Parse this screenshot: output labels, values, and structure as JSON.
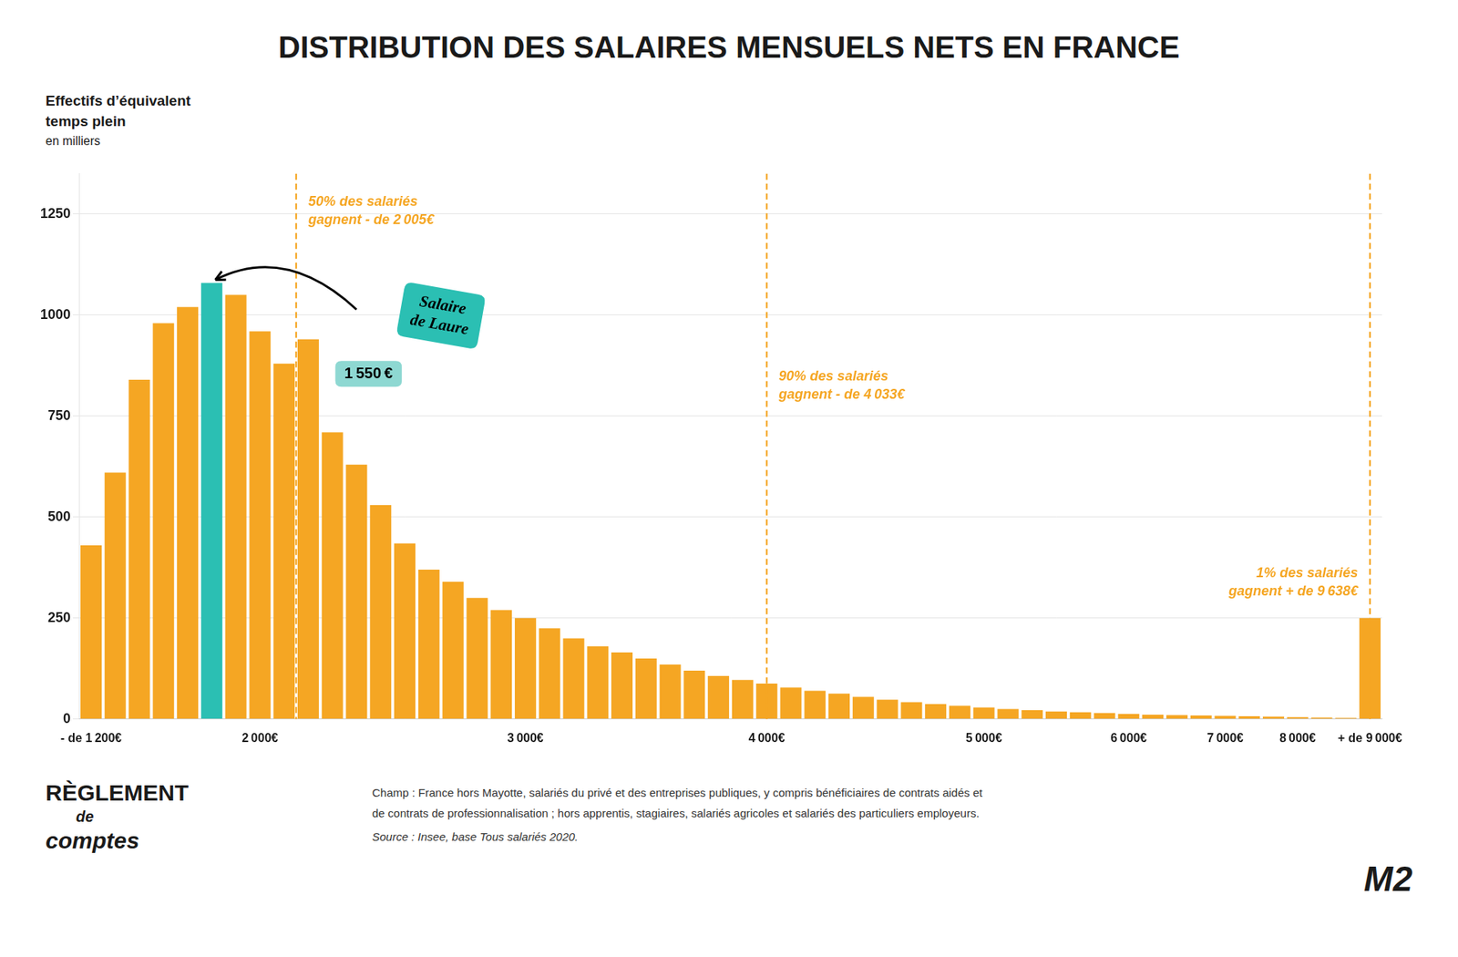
{
  "chart_data": {
    "type": "bar",
    "title": "DISTRIBUTION DES SALAIRES MENSUELS NETS EN FRANCE",
    "ylabel": "Effectifs d’équivalent\ntemps plein",
    "ylabel_unit": "en milliers",
    "categories": [
      "- de 1 200€",
      null,
      null,
      null,
      null,
      null,
      null,
      "2 000€",
      null,
      null,
      null,
      null,
      null,
      null,
      null,
      null,
      null,
      null,
      "3 000€",
      null,
      null,
      null,
      null,
      null,
      null,
      null,
      null,
      null,
      "4 000€",
      null,
      null,
      null,
      null,
      null,
      null,
      null,
      null,
      "5 000€",
      null,
      null,
      null,
      null,
      null,
      "6 000€",
      null,
      null,
      null,
      "7 000€",
      null,
      null,
      "8 000€",
      null,
      null,
      "+ de 9 000€"
    ],
    "values": [
      430,
      610,
      840,
      980,
      1020,
      1080,
      1050,
      960,
      880,
      940,
      710,
      630,
      530,
      435,
      370,
      340,
      300,
      270,
      250,
      225,
      200,
      180,
      165,
      150,
      135,
      120,
      107,
      97,
      88,
      78,
      70,
      63,
      55,
      48,
      42,
      37,
      33,
      29,
      25,
      22,
      19,
      17,
      15,
      13,
      11,
      10,
      9,
      8,
      7,
      6,
      5,
      4,
      3,
      250
    ],
    "colors": [
      "#F5A623",
      "#F5A623",
      "#F5A623",
      "#F5A623",
      "#F5A623",
      "#2BBFB3",
      "#F5A623",
      "#F5A623",
      "#F5A623",
      "#F5A623",
      "#F5A623",
      "#F5A623",
      "#F5A623",
      "#F5A623",
      "#F5A623",
      "#F5A623",
      "#F5A623",
      "#F5A623",
      "#F5A623",
      "#F5A623",
      "#F5A623",
      "#F5A623",
      "#F5A623",
      "#F5A623",
      "#F5A623",
      "#F5A623",
      "#F5A623",
      "#F5A623",
      "#F5A623",
      "#F5A623",
      "#F5A623",
      "#F5A623",
      "#F5A623",
      "#F5A623",
      "#F5A623",
      "#F5A623",
      "#F5A623",
      "#F5A623",
      "#F5A623",
      "#F5A623",
      "#F5A623",
      "#F5A623",
      "#F5A623",
      "#F5A623",
      "#F5A623",
      "#F5A623",
      "#F5A623",
      "#F5A623",
      "#F5A623",
      "#F5A623",
      "#F5A623",
      "#F5A623",
      "#F5A623",
      "#F5A623"
    ],
    "ylim": [
      0,
      1350
    ],
    "yticks": [
      0,
      250,
      500,
      750,
      1000,
      1250
    ],
    "grid": true,
    "annotations": [
      {
        "text": "50% des salariés\ngagnent - de 2 005€",
        "x": 8.5,
        "color": "#F5A623"
      },
      {
        "text": "90% des salariés\ngagnent - de 4 033€",
        "x": 28,
        "color": "#F5A623"
      },
      {
        "text": "1% des salariés\ngagnent + de 9 638€",
        "x": 53,
        "color": "#F5A623"
      },
      {
        "text": "Salaire\nde Laure",
        "x": 5,
        "color": "#2BBFB3"
      },
      {
        "text": "1 550 €",
        "x": 5,
        "color": "#8ED8D2"
      }
    ],
    "footnotes": [
      "Champ : France hors Mayotte, salariés du privé et des entreprises publiques, y compris bénéficiaires de contrats aidés et",
      "de contrats de professionnalisation ; hors apprentis, stagiaires, salariés agricoles et salariés des particuliers employeurs.",
      "Source : Insee, base Tous salariés 2020."
    ],
    "logos": [
      "RÈGLEMENT",
      "de",
      "comptes",
      "M2"
    ]
  }
}
